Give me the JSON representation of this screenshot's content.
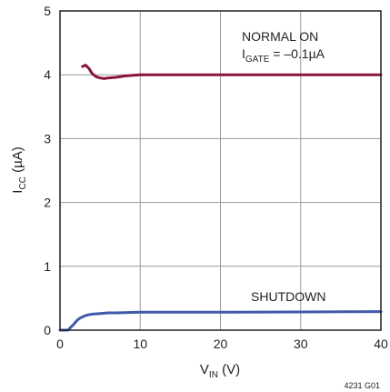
{
  "chart_data": {
    "type": "line",
    "xlabel": {
      "main": "V",
      "sub": "IN",
      "unit": " (V)"
    },
    "ylabel": {
      "main": "I",
      "sub": "CC",
      "unit": " (µA)"
    },
    "xlim": [
      0,
      40
    ],
    "ylim": [
      0,
      5
    ],
    "x_ticks": [
      "0",
      "10",
      "20",
      "30",
      "40"
    ],
    "y_ticks": [
      "0",
      "1",
      "2",
      "3",
      "4",
      "5"
    ],
    "grid": true,
    "series": [
      {
        "name": "NORMAL ON",
        "color": "#8b1538",
        "x": [
          2.8,
          3.2,
          3.6,
          4.0,
          4.5,
          5.0,
          5.5,
          6.0,
          7.0,
          8.0,
          9.0,
          10.0,
          11.0,
          12.0,
          14.0,
          20.0,
          30.0,
          40.0
        ],
        "y": [
          4.13,
          4.15,
          4.1,
          4.02,
          3.97,
          3.95,
          3.94,
          3.95,
          3.96,
          3.98,
          3.99,
          4.0,
          4.0,
          4.0,
          4.0,
          4.0,
          4.0,
          4.0
        ]
      },
      {
        "name": "SHUTDOWN",
        "color": "#3f5ba9",
        "x": [
          0.0,
          1.0,
          1.3,
          1.7,
          2.1,
          2.5,
          3.0,
          3.5,
          4.0,
          5.0,
          6.0,
          7.0,
          8.0,
          10.0,
          12.0,
          15.0,
          20.0,
          30.0,
          40.0
        ],
        "y": [
          0.0,
          0.0,
          0.04,
          0.09,
          0.15,
          0.19,
          0.22,
          0.24,
          0.25,
          0.26,
          0.27,
          0.27,
          0.275,
          0.28,
          0.28,
          0.28,
          0.28,
          0.285,
          0.29
        ]
      }
    ],
    "annotations": {
      "normal_on": "NORMAL ON",
      "gate_main": "I",
      "gate_sub": "GATE",
      "gate_value": " = –0.1µA",
      "shutdown": "SHUTDOWN"
    },
    "figure_id": "4231 G01"
  }
}
